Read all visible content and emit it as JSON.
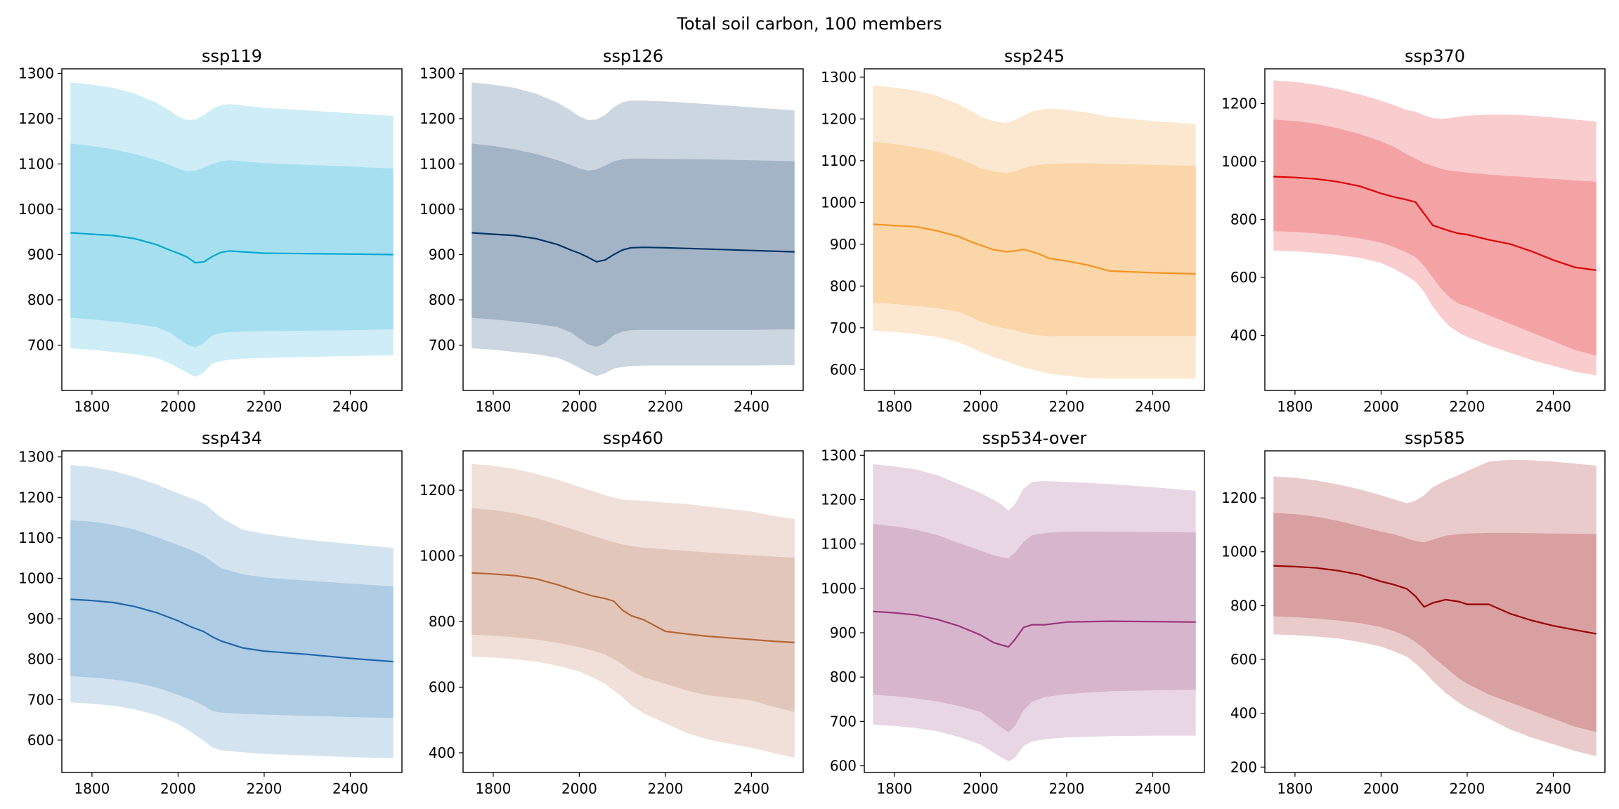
{
  "figure": {
    "title": "Total soil carbon, 100 members"
  },
  "chart_data": [
    {
      "type": "area",
      "title": "ssp119",
      "color": "#00a9cf",
      "shade": "#a6dff0",
      "xlim": [
        1730,
        2520
      ],
      "ylim": [
        600,
        1310
      ],
      "xticks": [
        1800,
        2000,
        2200,
        2400
      ],
      "yticks": [
        700,
        800,
        900,
        1000,
        1100,
        1200,
        1300
      ],
      "x": [
        1750,
        1800,
        1850,
        1900,
        1950,
        1980,
        2000,
        2020,
        2040,
        2060,
        2080,
        2100,
        2120,
        2150,
        2200,
        2300,
        2400,
        2500
      ],
      "outer_upper": [
        1280,
        1275,
        1268,
        1255,
        1235,
        1218,
        1205,
        1197,
        1198,
        1208,
        1222,
        1230,
        1232,
        1229,
        1224,
        1218,
        1212,
        1206
      ],
      "inner_upper": [
        1145,
        1140,
        1132,
        1122,
        1108,
        1098,
        1090,
        1084,
        1085,
        1092,
        1100,
        1106,
        1108,
        1106,
        1102,
        1098,
        1094,
        1090
      ],
      "median": [
        948,
        945,
        942,
        935,
        922,
        910,
        903,
        895,
        882,
        884,
        896,
        905,
        908,
        906,
        903,
        902,
        901,
        900
      ],
      "inner_lower": [
        760,
        757,
        752,
        747,
        740,
        728,
        715,
        702,
        695,
        705,
        722,
        727,
        729,
        730,
        731,
        732,
        733,
        735
      ],
      "outer_lower": [
        693,
        690,
        685,
        680,
        672,
        660,
        650,
        640,
        630,
        640,
        660,
        665,
        668,
        670,
        672,
        674,
        676,
        678
      ]
    },
    {
      "type": "area",
      "title": "ssp126",
      "color": "#003466",
      "shade": "#a3b4c6",
      "xlim": [
        1730,
        2520
      ],
      "ylim": [
        600,
        1310
      ],
      "xticks": [
        1800,
        2000,
        2200,
        2400
      ],
      "yticks": [
        700,
        800,
        900,
        1000,
        1100,
        1200,
        1300
      ],
      "x": [
        1750,
        1800,
        1850,
        1900,
        1950,
        1980,
        2000,
        2020,
        2040,
        2060,
        2080,
        2100,
        2120,
        2150,
        2200,
        2300,
        2400,
        2500
      ],
      "outer_upper": [
        1280,
        1275,
        1268,
        1255,
        1235,
        1218,
        1205,
        1197,
        1198,
        1208,
        1225,
        1236,
        1240,
        1240,
        1238,
        1232,
        1225,
        1218
      ],
      "inner_upper": [
        1145,
        1140,
        1132,
        1122,
        1108,
        1098,
        1090,
        1085,
        1088,
        1096,
        1106,
        1110,
        1112,
        1112,
        1111,
        1110,
        1108,
        1106
      ],
      "median": [
        948,
        945,
        942,
        935,
        922,
        910,
        903,
        894,
        884,
        888,
        900,
        910,
        915,
        916,
        915,
        912,
        909,
        906
      ],
      "inner_lower": [
        760,
        757,
        752,
        747,
        740,
        728,
        715,
        702,
        696,
        705,
        722,
        730,
        733,
        734,
        734,
        734,
        734,
        735
      ],
      "outer_lower": [
        693,
        690,
        685,
        680,
        672,
        660,
        650,
        640,
        632,
        638,
        648,
        652,
        654,
        655,
        655,
        655,
        655,
        656
      ]
    },
    {
      "type": "area",
      "title": "ssp245",
      "color": "#f69320",
      "shade": "#fad6a9",
      "xlim": [
        1730,
        2520
      ],
      "ylim": [
        550,
        1320
      ],
      "xticks": [
        1800,
        2000,
        2200,
        2400
      ],
      "yticks": [
        600,
        700,
        800,
        900,
        1000,
        1100,
        1200,
        1300
      ],
      "x": [
        1750,
        1800,
        1850,
        1900,
        1950,
        1980,
        2000,
        2030,
        2060,
        2080,
        2100,
        2120,
        2140,
        2160,
        2200,
        2250,
        2300,
        2400,
        2500
      ],
      "outer_upper": [
        1280,
        1275,
        1268,
        1255,
        1235,
        1218,
        1205,
        1195,
        1190,
        1198,
        1208,
        1218,
        1222,
        1225,
        1222,
        1215,
        1205,
        1195,
        1188
      ],
      "inner_upper": [
        1145,
        1140,
        1132,
        1122,
        1105,
        1092,
        1082,
        1075,
        1070,
        1075,
        1082,
        1088,
        1090,
        1092,
        1094,
        1094,
        1092,
        1090,
        1088
      ],
      "median": [
        948,
        945,
        942,
        932,
        918,
        905,
        898,
        887,
        882,
        884,
        888,
        882,
        875,
        866,
        860,
        850,
        836,
        832,
        829
      ],
      "inner_lower": [
        760,
        757,
        752,
        747,
        738,
        725,
        715,
        705,
        698,
        694,
        688,
        684,
        682,
        680,
        680,
        680,
        680,
        680,
        680
      ],
      "outer_lower": [
        693,
        690,
        685,
        678,
        665,
        652,
        642,
        630,
        620,
        612,
        605,
        600,
        595,
        590,
        585,
        580,
        578,
        578,
        578
      ]
    },
    {
      "type": "area",
      "title": "ssp370",
      "color": "#df0000",
      "shade": "#f4a3a5",
      "xlim": [
        1730,
        2520
      ],
      "ylim": [
        210,
        1320
      ],
      "xticks": [
        1800,
        2000,
        2200,
        2400
      ],
      "yticks": [
        400,
        600,
        800,
        1000,
        1200
      ],
      "x": [
        1750,
        1800,
        1850,
        1900,
        1950,
        2000,
        2030,
        2060,
        2080,
        2100,
        2120,
        2140,
        2160,
        2180,
        2200,
        2250,
        2300,
        2350,
        2400,
        2450,
        2500
      ],
      "outer_upper": [
        1280,
        1275,
        1265,
        1250,
        1232,
        1210,
        1195,
        1178,
        1172,
        1160,
        1150,
        1148,
        1150,
        1155,
        1158,
        1162,
        1162,
        1158,
        1152,
        1145,
        1138
      ],
      "inner_upper": [
        1145,
        1140,
        1130,
        1115,
        1095,
        1070,
        1050,
        1025,
        1010,
        995,
        985,
        975,
        968,
        965,
        962,
        955,
        950,
        945,
        940,
        935,
        930
      ],
      "median": [
        948,
        945,
        940,
        930,
        915,
        890,
        878,
        868,
        860,
        820,
        780,
        770,
        760,
        752,
        748,
        730,
        715,
        690,
        660,
        635,
        625
      ],
      "inner_lower": [
        760,
        757,
        752,
        745,
        735,
        720,
        705,
        685,
        670,
        640,
        600,
        560,
        530,
        510,
        500,
        470,
        440,
        410,
        380,
        350,
        330
      ],
      "outer_lower": [
        693,
        690,
        685,
        678,
        668,
        650,
        630,
        605,
        585,
        550,
        500,
        460,
        430,
        410,
        395,
        365,
        340,
        315,
        295,
        275,
        262
      ]
    },
    {
      "type": "area",
      "title": "ssp434",
      "color": "#2166ac",
      "shade": "#aecce3",
      "xlim": [
        1730,
        2520
      ],
      "ylim": [
        520,
        1315
      ],
      "xticks": [
        1800,
        2000,
        2200,
        2400
      ],
      "yticks": [
        600,
        700,
        800,
        900,
        1000,
        1100,
        1200,
        1300
      ],
      "x": [
        1750,
        1800,
        1850,
        1900,
        1950,
        2000,
        2030,
        2060,
        2080,
        2100,
        2150,
        2200,
        2300,
        2400,
        2500
      ],
      "outer_upper": [
        1280,
        1275,
        1265,
        1250,
        1232,
        1210,
        1198,
        1185,
        1168,
        1150,
        1120,
        1110,
        1095,
        1085,
        1075
      ],
      "inner_upper": [
        1143,
        1140,
        1132,
        1120,
        1102,
        1082,
        1070,
        1055,
        1040,
        1025,
        1010,
        1002,
        994,
        987,
        980
      ],
      "median": [
        948,
        945,
        940,
        930,
        915,
        895,
        880,
        868,
        855,
        845,
        828,
        820,
        812,
        802,
        794
      ],
      "inner_lower": [
        758,
        755,
        750,
        742,
        730,
        712,
        700,
        685,
        672,
        668,
        665,
        663,
        660,
        657,
        655
      ],
      "outer_lower": [
        693,
        690,
        685,
        676,
        662,
        640,
        620,
        598,
        582,
        575,
        570,
        566,
        562,
        558,
        555
      ]
    },
    {
      "type": "area",
      "title": "ssp460",
      "color": "#b26634",
      "shade": "#e3c6ba",
      "xlim": [
        1730,
        2520
      ],
      "ylim": [
        340,
        1320
      ],
      "xticks": [
        1800,
        2000,
        2200,
        2400
      ],
      "yticks": [
        400,
        600,
        800,
        1000,
        1200
      ],
      "x": [
        1750,
        1800,
        1850,
        1900,
        1950,
        2000,
        2030,
        2060,
        2080,
        2100,
        2120,
        2150,
        2200,
        2250,
        2300,
        2400,
        2450,
        2500
      ],
      "outer_upper": [
        1280,
        1275,
        1265,
        1250,
        1232,
        1210,
        1198,
        1185,
        1178,
        1172,
        1170,
        1168,
        1162,
        1158,
        1150,
        1135,
        1122,
        1112
      ],
      "inner_upper": [
        1145,
        1140,
        1130,
        1115,
        1095,
        1075,
        1062,
        1050,
        1042,
        1035,
        1030,
        1025,
        1020,
        1015,
        1010,
        1002,
        998,
        995
      ],
      "median": [
        948,
        945,
        940,
        930,
        912,
        890,
        878,
        870,
        862,
        835,
        818,
        805,
        770,
        762,
        755,
        745,
        740,
        736
      ],
      "inner_lower": [
        760,
        757,
        752,
        745,
        735,
        722,
        712,
        700,
        685,
        670,
        650,
        630,
        610,
        590,
        575,
        560,
        540,
        525
      ],
      "outer_lower": [
        693,
        690,
        685,
        678,
        665,
        648,
        630,
        610,
        590,
        570,
        545,
        520,
        490,
        460,
        440,
        415,
        400,
        385
      ]
    },
    {
      "type": "area",
      "title": "ssp534-over",
      "color": "#9a347a",
      "shade": "#d7b5cd",
      "xlim": [
        1730,
        2520
      ],
      "ylim": [
        585,
        1310
      ],
      "xticks": [
        1800,
        2000,
        2200,
        2400
      ],
      "yticks": [
        600,
        700,
        800,
        900,
        1000,
        1100,
        1200,
        1300
      ],
      "x": [
        1750,
        1800,
        1850,
        1900,
        1950,
        2000,
        2030,
        2050,
        2065,
        2080,
        2100,
        2120,
        2150,
        2200,
        2300,
        2400,
        2500
      ],
      "outer_upper": [
        1280,
        1275,
        1268,
        1255,
        1235,
        1215,
        1200,
        1188,
        1175,
        1190,
        1225,
        1240,
        1242,
        1240,
        1235,
        1228,
        1220
      ],
      "inner_upper": [
        1145,
        1140,
        1132,
        1120,
        1102,
        1085,
        1075,
        1070,
        1068,
        1080,
        1105,
        1120,
        1125,
        1128,
        1128,
        1127,
        1126
      ],
      "median": [
        948,
        945,
        940,
        930,
        915,
        895,
        878,
        872,
        868,
        885,
        912,
        918,
        918,
        924,
        926,
        925,
        924
      ],
      "inner_lower": [
        760,
        757,
        752,
        745,
        735,
        722,
        700,
        685,
        676,
        690,
        725,
        745,
        755,
        762,
        768,
        770,
        772
      ],
      "outer_lower": [
        693,
        690,
        685,
        678,
        665,
        648,
        630,
        618,
        610,
        618,
        645,
        655,
        660,
        664,
        667,
        668,
        668
      ]
    },
    {
      "type": "area",
      "title": "ssp585",
      "color": "#990002",
      "shade": "#d8a0a1",
      "xlim": [
        1730,
        2520
      ],
      "ylim": [
        180,
        1375
      ],
      "xticks": [
        1800,
        2000,
        2200,
        2400
      ],
      "yticks": [
        200,
        400,
        600,
        800,
        1000,
        1200
      ],
      "x": [
        1750,
        1800,
        1850,
        1900,
        1950,
        2000,
        2030,
        2060,
        2080,
        2100,
        2120,
        2150,
        2180,
        2200,
        2250,
        2300,
        2350,
        2400,
        2450,
        2500
      ],
      "outer_upper": [
        1280,
        1275,
        1265,
        1250,
        1232,
        1210,
        1195,
        1180,
        1190,
        1210,
        1240,
        1265,
        1285,
        1300,
        1335,
        1342,
        1340,
        1335,
        1328,
        1320
      ],
      "inner_upper": [
        1145,
        1140,
        1130,
        1115,
        1095,
        1075,
        1065,
        1050,
        1040,
        1035,
        1045,
        1060,
        1065,
        1068,
        1070,
        1070,
        1069,
        1068,
        1067,
        1066
      ],
      "median": [
        948,
        945,
        940,
        930,
        915,
        890,
        878,
        862,
        835,
        795,
        810,
        822,
        815,
        805,
        805,
        770,
        745,
        725,
        710,
        695
      ],
      "inner_lower": [
        760,
        757,
        752,
        745,
        735,
        720,
        705,
        685,
        665,
        640,
        610,
        570,
        530,
        510,
        470,
        440,
        410,
        380,
        350,
        330
      ],
      "outer_lower": [
        693,
        690,
        685,
        678,
        665,
        648,
        630,
        610,
        585,
        555,
        520,
        475,
        440,
        420,
        380,
        340,
        310,
        285,
        260,
        240
      ]
    }
  ]
}
